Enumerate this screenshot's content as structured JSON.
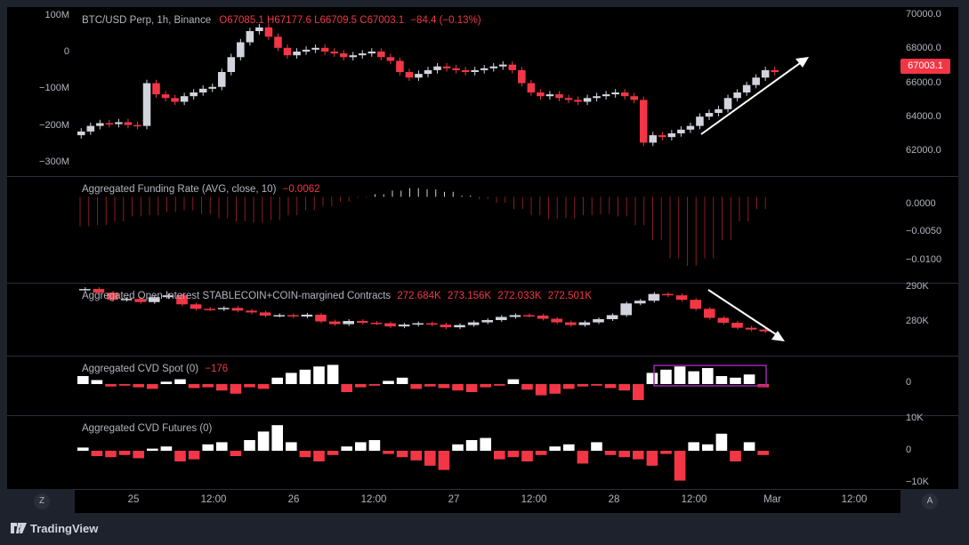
{
  "main": {
    "symbol_info": "BTC/USD Perp, 1h, Binance",
    "ohlc_o": "O67085.1",
    "ohlc_h": "H67177.6",
    "ohlc_l": "L66709.5",
    "ohlc_c": "C67003.1",
    "change": "−84.4 (−0.13%)",
    "price_badge": "67003.1",
    "right_axis": [
      "70000.0",
      "68000.0",
      "66000.0",
      "64000.0",
      "62000.0"
    ],
    "left_axis": [
      "100M",
      "0",
      "−100M",
      "−200M",
      "−300M"
    ]
  },
  "funding": {
    "title": "Aggregated Funding Rate (AVG, close, 10)",
    "value": "−0.0062",
    "right_axis": [
      "0.0000",
      "−0.0050",
      "−0.0100"
    ]
  },
  "oi": {
    "title": "Aggregated Open Interest STABLECOIN+COIN-margined Contracts",
    "values": [
      "272.684K",
      "273.156K",
      "272.033K",
      "272.501K"
    ],
    "right_axis": [
      "290K",
      "280K"
    ]
  },
  "cvd_spot": {
    "title": "Aggregated CVD Spot (0)",
    "value": "−176",
    "right_axis": [
      "0"
    ]
  },
  "cvd_futures": {
    "title": "Aggregated CVD Futures (0)",
    "right_axis": [
      "10K",
      "0",
      "−10K"
    ]
  },
  "time_axis": [
    "25",
    "12:00",
    "26",
    "12:00",
    "27",
    "12:00",
    "28",
    "12:00",
    "Mar",
    "12:00"
  ],
  "buttons": {
    "zoom_label": "Z",
    "auto_label": "A"
  },
  "brand": "TradingView",
  "colors": {
    "up": "#d1d4dc",
    "down": "#f23645",
    "background": "#000000",
    "highlight_box": "#9c27b0",
    "arrow": "#ffffff"
  },
  "chart_data": {
    "type": "candlestick",
    "price_series": [
      63800,
      64100,
      64250,
      64200,
      64300,
      64150,
      64100,
      66400,
      65800,
      65600,
      65400,
      65700,
      65900,
      66100,
      66200,
      67000,
      67800,
      68600,
      69200,
      69400,
      68900,
      68300,
      67900,
      68100,
      68200,
      68300,
      68100,
      68000,
      67800,
      67900,
      68000,
      68100,
      67800,
      67600,
      67000,
      66700,
      66900,
      67100,
      67300,
      67200,
      67100,
      67000,
      67100,
      67200,
      67300,
      67400,
      67100,
      66400,
      65900,
      65700,
      65800,
      65600,
      65500,
      65400,
      65600,
      65700,
      65800,
      65900,
      65700,
      65500,
      63200,
      63600,
      63500,
      63700,
      63900,
      64100,
      64600,
      64800,
      65000,
      65600,
      65900,
      66300,
      66700,
      67100,
      67000
    ],
    "oi_series": [
      290000,
      289200,
      287600,
      287800,
      287100,
      288200,
      288600,
      286600,
      285600,
      285500,
      285800,
      285200,
      284800,
      284100,
      284200,
      283900,
      284300,
      282800,
      282200,
      282900,
      282500,
      282400,
      281700,
      282100,
      282400,
      282100,
      281500,
      282000,
      282600,
      283100,
      283800,
      284200,
      284100,
      283400,
      282600,
      282000,
      282600,
      283300,
      284200,
      286800,
      287400,
      288900,
      288600,
      287600,
      285600,
      283600,
      282500,
      281400,
      281000,
      280600
    ],
    "funding_series": [
      -0.0048,
      -0.0046,
      -0.004,
      -0.0032,
      -0.003,
      -0.0025,
      -0.0022,
      -0.0028,
      -0.0035,
      -0.004,
      -0.0042,
      -0.0038,
      -0.003,
      -0.0022,
      -0.0015,
      -0.0008,
      -0.0002,
      0.0004,
      0.001,
      0.0014,
      0.0012,
      0.0008,
      0.0002,
      -0.0004,
      -0.001,
      -0.002,
      -0.003,
      -0.0036,
      -0.0035,
      -0.003,
      -0.0028,
      -0.0032,
      -0.0046,
      -0.007,
      -0.01,
      -0.0112,
      -0.01,
      -0.007,
      -0.004,
      -0.002
    ],
    "cvd_spot_series": [
      10,
      5,
      -3,
      -2,
      -4,
      -6,
      3,
      6,
      -5,
      -4,
      -8,
      -12,
      -4,
      -6,
      8,
      14,
      18,
      22,
      24,
      -10,
      -4,
      -2,
      4,
      8,
      -6,
      -3,
      -5,
      -8,
      -10,
      -4,
      -2,
      6,
      -7,
      -14,
      -12,
      -6,
      -3,
      -2,
      -5,
      -8,
      -20,
      14,
      18,
      22,
      16,
      20,
      10,
      8,
      12,
      -4
    ],
    "cvd_futures_series": [
      3,
      -5,
      -6,
      -4,
      -7,
      2,
      4,
      -10,
      -8,
      6,
      8,
      -5,
      10,
      18,
      24,
      8,
      -6,
      -10,
      -4,
      4,
      8,
      10,
      -3,
      -6,
      -9,
      -14,
      -18,
      6,
      10,
      12,
      -8,
      -6,
      -10,
      -4,
      4,
      6,
      -12,
      8,
      -4,
      -6,
      -8,
      -14,
      -3,
      -28,
      8,
      6,
      16,
      -10,
      8,
      -4
    ],
    "price_ylim": [
      61500,
      70300
    ],
    "oi_ylim": [
      276000,
      291000
    ],
    "funding_ylim": [
      -0.0125,
      0.0025
    ]
  }
}
